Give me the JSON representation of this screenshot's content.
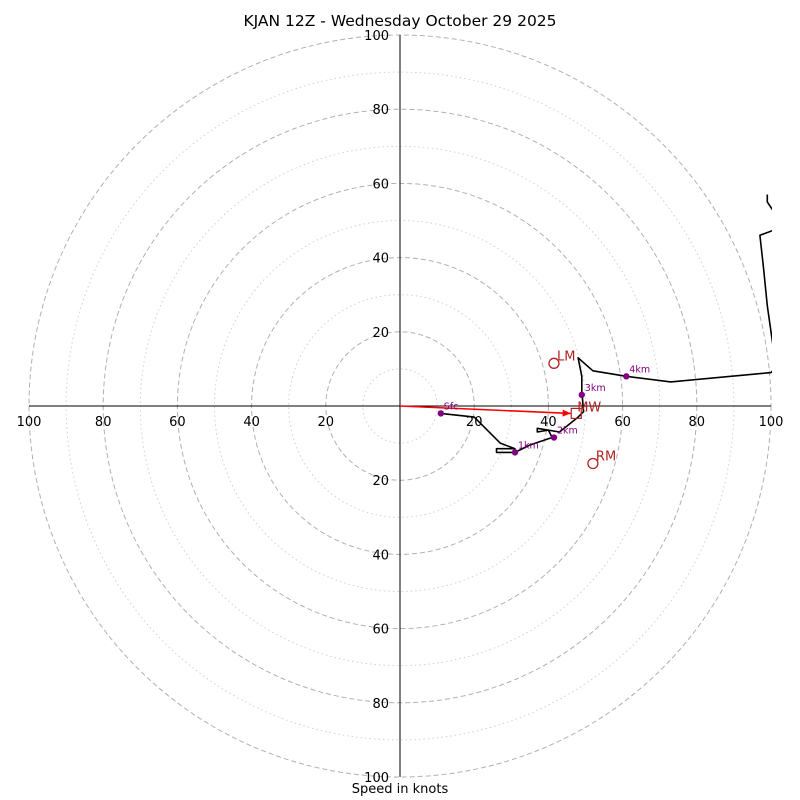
{
  "chart_data": {
    "type": "hodograph",
    "title": "KJAN 12Z - Wednesday October 29 2025",
    "xlabel": "Speed in knots",
    "units": "knots",
    "ring_max": 100,
    "major_rings": [
      20,
      40,
      60,
      80,
      100
    ],
    "minor_rings": [
      10,
      30,
      50,
      70,
      90
    ],
    "axis_ticks": [
      "20",
      "40",
      "60",
      "80",
      "100"
    ],
    "hodograph_uv": [
      [
        11,
        -2
      ],
      [
        20,
        -3
      ],
      [
        27,
        -10
      ],
      [
        31,
        -11.5
      ],
      [
        26,
        -11.5
      ],
      [
        26,
        -12.5
      ],
      [
        31,
        -12.5
      ],
      [
        35,
        -10.5
      ],
      [
        41,
        -8.5
      ],
      [
        40,
        -6.5
      ],
      [
        37,
        -7
      ],
      [
        37,
        -6
      ],
      [
        43,
        -7
      ],
      [
        48,
        -3
      ],
      [
        49.5,
        -1.5
      ],
      [
        49,
        4
      ],
      [
        49,
        8
      ],
      [
        48,
        13
      ],
      [
        52,
        9.5
      ],
      [
        61,
        8
      ],
      [
        73,
        6.5
      ],
      [
        100,
        9
      ],
      [
        101,
        10
      ],
      [
        101,
        13
      ],
      [
        100,
        20
      ],
      [
        99,
        27
      ],
      [
        98,
        37
      ],
      [
        97,
        46
      ],
      [
        101,
        47.5
      ],
      [
        101,
        52
      ],
      [
        99,
        55
      ],
      [
        99,
        57
      ]
    ],
    "height_markers": [
      {
        "label": "Sfc",
        "u": 11,
        "v": -2
      },
      {
        "label": "1km",
        "u": 31,
        "v": -12.5
      },
      {
        "label": "2km",
        "u": 41.5,
        "v": -8.5
      },
      {
        "label": "3km",
        "u": 49,
        "v": 3
      },
      {
        "label": "4km",
        "u": 61,
        "v": 8
      }
    ],
    "storm_motion": [
      {
        "label": "LM",
        "u": 41.5,
        "v": 11.5
      },
      {
        "label": "RM",
        "u": 52,
        "v": -15.5
      }
    ],
    "mean_wind": {
      "label": "MW",
      "u": 47.5,
      "v": -2
    },
    "shear_vector": {
      "from_u": 0,
      "from_v": 0,
      "to_u": 46,
      "to_v": -2
    },
    "colors": {
      "grid": "#b0b0b0",
      "trace": "#000000",
      "markers": "#800080",
      "storm": "#b22222",
      "shear": "#ff0000"
    }
  }
}
